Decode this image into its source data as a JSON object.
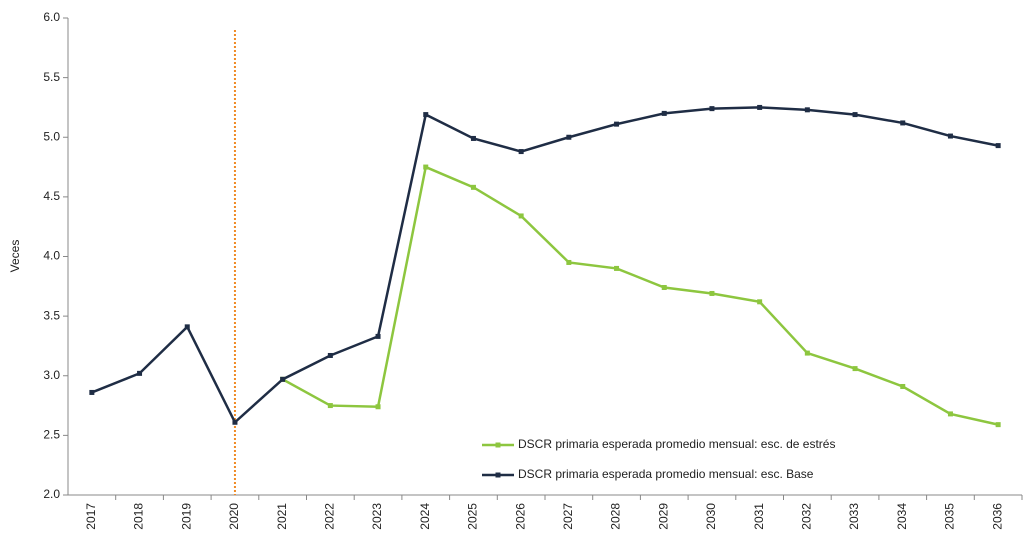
{
  "chart_data": {
    "type": "line",
    "y_label": "Veces",
    "categories": [
      "2017",
      "2018",
      "2019",
      "2020",
      "2021",
      "2022",
      "2023",
      "2024",
      "2025",
      "2026",
      "2027",
      "2028",
      "2029",
      "2030",
      "2031",
      "2032",
      "2033",
      "2034",
      "2035",
      "2036"
    ],
    "series": [
      {
        "name": "DSCR primaria esperada promedio mensual: esc. de estrés",
        "color": "#8dc63f",
        "values": [
          null,
          null,
          null,
          null,
          2.97,
          2.75,
          2.74,
          4.75,
          4.58,
          4.34,
          3.95,
          3.9,
          3.74,
          3.69,
          3.62,
          3.19,
          3.06,
          2.91,
          2.68,
          2.59
        ]
      },
      {
        "name": "DSCR primaria esperada promedio mensual: esc. Base",
        "color": "#1f2d45",
        "values": [
          2.86,
          3.02,
          3.41,
          2.61,
          2.97,
          3.17,
          3.33,
          5.19,
          4.99,
          4.88,
          5.0,
          5.11,
          5.2,
          5.24,
          5.25,
          5.23,
          5.19,
          5.12,
          5.01,
          4.93
        ]
      }
    ],
    "ylim": [
      2,
      6
    ],
    "yticks": [
      {
        "value": 2,
        "label": "2.0"
      },
      2.5,
      {
        "value": 3,
        "label": "3.0"
      },
      3.5,
      {
        "value": 4,
        "label": "4.0"
      },
      4.5,
      {
        "value": 5,
        "label": "5.0"
      },
      5.5,
      {
        "value": 6,
        "label": "6.0"
      }
    ],
    "reference_line": {
      "category": "2020",
      "color": "#f08a24"
    },
    "grid": false
  }
}
